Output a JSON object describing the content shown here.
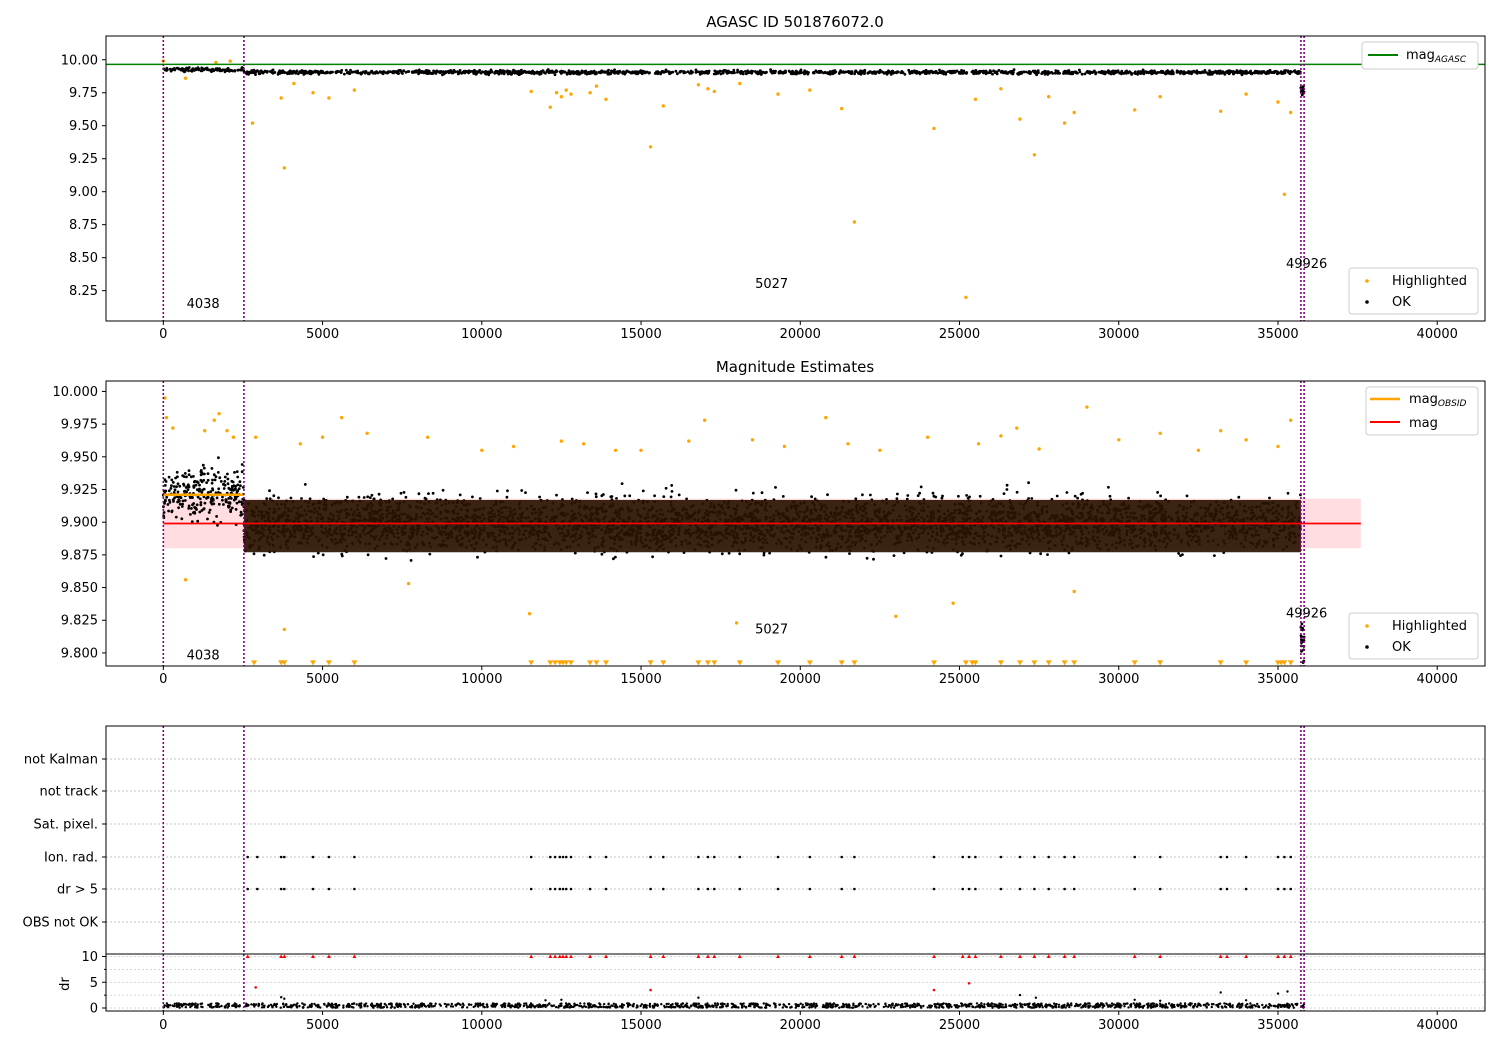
{
  "figure": {
    "panel1_title": "AGASC ID 501876072.0",
    "panel2_title": "Magnitude Estimates"
  },
  "colors": {
    "highlighted": "#ffa500",
    "ok": "#000000",
    "agasc_line": "#008000",
    "mag_line": "#ff0000",
    "obsid_line": "#ffa500",
    "band_fill": "#ffdde0",
    "obsid_boundary": "#800080",
    "dense_fill": "#2a1200",
    "flag_point": "#000000",
    "dr_flag": "#ff0000"
  },
  "chart_data": [
    {
      "type": "scatter",
      "title": "AGASC ID 501876072.0",
      "xlabel": "",
      "ylabel": "",
      "xlim": [
        -1800,
        41500
      ],
      "ylim": [
        8.02,
        10.18
      ],
      "xticks": [
        0,
        5000,
        10000,
        15000,
        20000,
        25000,
        30000,
        35000,
        40000
      ],
      "yticks": [
        8.25,
        8.5,
        8.75,
        9.0,
        9.25,
        9.5,
        9.75,
        10.0
      ],
      "ytick_labels": [
        "8.25",
        "8.50",
        "8.75",
        "9.00",
        "9.25",
        "9.50",
        "9.75",
        "10.00"
      ],
      "grid": false,
      "legend_lines": [
        {
          "label": "mag",
          "sub": "AGASC"
        }
      ],
      "legend_lines_position": "upper right",
      "legend_points": [
        {
          "label": "Highlighted"
        },
        {
          "label": "OK"
        }
      ],
      "legend_points_position": "lower right",
      "hline": {
        "name": "mag_AGASC",
        "y": 9.965
      },
      "obsid_boundaries": [
        0,
        2530,
        35720,
        35820
      ],
      "obsid_labels": [
        {
          "text": "4038",
          "x": 1250,
          "y": 8.12
        },
        {
          "text": "5027",
          "x": 19100,
          "y": 8.27
        },
        {
          "text": "49926",
          "x": 35900,
          "y": 8.42
        }
      ],
      "ok_bands": [
        {
          "x0": 0,
          "x1": 2530,
          "center": 9.925,
          "spread": 0.012
        },
        {
          "x0": 2530,
          "x1": 35720,
          "center": 9.905,
          "spread": 0.012
        },
        {
          "x0": 35720,
          "x1": 35820,
          "center": 9.77,
          "spread": 0.03
        }
      ],
      "highlighted_points": [
        [
          0,
          9.99
        ],
        [
          700,
          9.86
        ],
        [
          1650,
          9.98
        ],
        [
          2100,
          9.99
        ],
        [
          2800,
          9.52
        ],
        [
          3700,
          9.71
        ],
        [
          3800,
          9.18
        ],
        [
          4100,
          9.82
        ],
        [
          4700,
          9.75
        ],
        [
          5200,
          9.71
        ],
        [
          6000,
          9.77
        ],
        [
          11550,
          9.76
        ],
        [
          12150,
          9.64
        ],
        [
          12350,
          9.75
        ],
        [
          12500,
          9.72
        ],
        [
          12650,
          9.77
        ],
        [
          12800,
          9.74
        ],
        [
          13400,
          9.75
        ],
        [
          13600,
          9.8
        ],
        [
          13900,
          9.7
        ],
        [
          15300,
          9.34
        ],
        [
          15700,
          9.65
        ],
        [
          16800,
          9.81
        ],
        [
          17100,
          9.78
        ],
        [
          17300,
          9.76
        ],
        [
          18100,
          9.82
        ],
        [
          19300,
          9.74
        ],
        [
          20300,
          9.77
        ],
        [
          21300,
          9.63
        ],
        [
          21700,
          8.77
        ],
        [
          24200,
          9.48
        ],
        [
          25200,
          8.2
        ],
        [
          25500,
          9.7
        ],
        [
          26300,
          9.78
        ],
        [
          26900,
          9.55
        ],
        [
          27350,
          9.28
        ],
        [
          27800,
          9.72
        ],
        [
          28300,
          9.52
        ],
        [
          28600,
          9.6
        ],
        [
          30500,
          9.62
        ],
        [
          31300,
          9.72
        ],
        [
          33200,
          9.61
        ],
        [
          34000,
          9.74
        ],
        [
          35000,
          9.68
        ],
        [
          35200,
          8.98
        ],
        [
          35400,
          9.6
        ]
      ]
    },
    {
      "type": "scatter",
      "title": "Magnitude Estimates",
      "xlabel": "",
      "ylabel": "",
      "xlim": [
        -1800,
        41500
      ],
      "ylim": [
        9.79,
        10.008
      ],
      "xticks": [
        0,
        5000,
        10000,
        15000,
        20000,
        25000,
        30000,
        35000,
        40000
      ],
      "yticks": [
        9.8,
        9.825,
        9.85,
        9.875,
        9.9,
        9.925,
        9.95,
        9.975,
        10.0
      ],
      "ytick_labels": [
        "9.800",
        "9.825",
        "9.850",
        "9.875",
        "9.900",
        "9.925",
        "9.950",
        "9.975",
        "10.000"
      ],
      "grid": false,
      "legend_lines": [
        {
          "label": "mag",
          "sub": "OBSID"
        },
        {
          "label": "mag",
          "sub": ""
        }
      ],
      "legend_lines_position": "upper right",
      "legend_points": [
        {
          "label": "Highlighted"
        },
        {
          "label": "OK"
        }
      ],
      "legend_points_position": "lower right",
      "mag_line": {
        "name": "mag",
        "y": 9.899
      },
      "mag_band": {
        "y0": 9.88,
        "y1": 9.918,
        "x0": 0,
        "x1": 37600
      },
      "mag_obsid": [
        {
          "x0": 0,
          "x1": 2530,
          "y": 9.921
        }
      ],
      "obsid_boundaries": [
        0,
        2530,
        35720,
        35820
      ],
      "obsid_labels": [
        {
          "text": "4038",
          "x": 1250,
          "y": 9.795
        },
        {
          "text": "5027",
          "x": 19100,
          "y": 9.815
        },
        {
          "text": "49926",
          "x": 35900,
          "y": 9.827
        }
      ],
      "dense_band": {
        "x0": 2530,
        "x1": 35720,
        "y0": 9.877,
        "y1": 9.917
      },
      "ok_bands": [
        {
          "x0": 0,
          "x1": 2530,
          "center": 9.922,
          "spread": 0.016
        },
        {
          "x0": 2530,
          "x1": 35720,
          "center": 9.899,
          "spread": 0.017
        },
        {
          "x0": 35720,
          "x1": 35820,
          "center": 9.81,
          "spread": 0.012
        }
      ],
      "highlighted_points": [
        [
          50,
          9.995
        ],
        [
          100,
          9.98
        ],
        [
          300,
          9.972
        ],
        [
          700,
          9.856
        ],
        [
          1300,
          9.97
        ],
        [
          1600,
          9.978
        ],
        [
          1750,
          9.983
        ],
        [
          2000,
          9.97
        ],
        [
          2200,
          9.965
        ],
        [
          2900,
          9.965
        ],
        [
          3800,
          9.818
        ],
        [
          4300,
          9.96
        ],
        [
          5000,
          9.965
        ],
        [
          5600,
          9.98
        ],
        [
          6400,
          9.968
        ],
        [
          7700,
          9.853
        ],
        [
          8300,
          9.965
        ],
        [
          10000,
          9.955
        ],
        [
          11000,
          9.958
        ],
        [
          11500,
          9.83
        ],
        [
          12500,
          9.962
        ],
        [
          13200,
          9.96
        ],
        [
          14200,
          9.955
        ],
        [
          15000,
          9.955
        ],
        [
          16500,
          9.962
        ],
        [
          17000,
          9.978
        ],
        [
          18000,
          9.823
        ],
        [
          18500,
          9.963
        ],
        [
          19500,
          9.958
        ],
        [
          20800,
          9.98
        ],
        [
          21500,
          9.96
        ],
        [
          22500,
          9.955
        ],
        [
          23000,
          9.828
        ],
        [
          24000,
          9.965
        ],
        [
          24800,
          9.838
        ],
        [
          25600,
          9.96
        ],
        [
          26300,
          9.966
        ],
        [
          26800,
          9.972
        ],
        [
          27500,
          9.956
        ],
        [
          28600,
          9.847
        ],
        [
          29000,
          9.988
        ],
        [
          30000,
          9.963
        ],
        [
          31300,
          9.968
        ],
        [
          32500,
          9.955
        ],
        [
          33200,
          9.97
        ],
        [
          34000,
          9.963
        ],
        [
          35000,
          9.958
        ],
        [
          35400,
          9.978
        ]
      ],
      "below_markers_y": 9.792,
      "below_markers_x": [
        2850,
        3700,
        3800,
        4700,
        5200,
        6000,
        11550,
        12150,
        12300,
        12450,
        12550,
        12650,
        12800,
        13400,
        13600,
        13900,
        15300,
        15700,
        16800,
        17100,
        17300,
        18100,
        19300,
        20300,
        21300,
        21700,
        24200,
        25200,
        25400,
        25500,
        26300,
        26900,
        27350,
        27800,
        28300,
        28600,
        30500,
        31300,
        33200,
        34000,
        35000,
        35100,
        35200,
        35400
      ]
    },
    {
      "type": "scatter",
      "title": "",
      "xlabel": "",
      "ylabel": "",
      "categories": [
        "not Kalman",
        "not track",
        "Sat. pixel.",
        "Ion. rad.",
        "dr > 5",
        "OBS not OK"
      ],
      "xlim": [
        -1800,
        41500
      ],
      "xticks": [
        0,
        5000,
        10000,
        15000,
        20000,
        25000,
        30000,
        35000,
        40000
      ],
      "obsid_boundaries": [
        0,
        2530,
        35720,
        35820
      ],
      "flagged_rows": {
        "Ion. rad.": [
          2650,
          2950,
          3700,
          3800,
          4700,
          5200,
          6000,
          11550,
          12150,
          12300,
          12450,
          12550,
          12650,
          12800,
          13400,
          13900,
          15300,
          15700,
          16800,
          17100,
          17300,
          18100,
          19300,
          20300,
          21300,
          21700,
          24200,
          25100,
          25300,
          25500,
          26300,
          26900,
          27350,
          27800,
          28300,
          28600,
          30500,
          31300,
          33200,
          33400,
          34000,
          35000,
          35200,
          35400
        ],
        "dr > 5": [
          2650,
          2950,
          3700,
          3800,
          4700,
          5200,
          6000,
          11550,
          12150,
          12300,
          12450,
          12550,
          12650,
          12800,
          13400,
          13900,
          15300,
          15700,
          16800,
          17100,
          17300,
          18100,
          19300,
          20300,
          21300,
          21700,
          24200,
          25100,
          25300,
          25500,
          26300,
          26900,
          27350,
          27800,
          28300,
          28600,
          30500,
          31300,
          33200,
          33400,
          34000,
          35000,
          35200,
          35400
        ]
      }
    },
    {
      "type": "scatter",
      "title": "",
      "xlabel": "",
      "ylabel": "dr",
      "xlim": [
        -1800,
        41500
      ],
      "ylim": [
        -0.5,
        10.5
      ],
      "yticks": [
        0,
        5,
        10
      ],
      "ytick_labels": [
        "0",
        "5",
        "10"
      ],
      "xticks": [
        0,
        5000,
        10000,
        15000,
        20000,
        25000,
        30000,
        35000,
        40000
      ],
      "xtick_labels": [
        "0",
        "5000",
        "10000",
        "15000",
        "20000",
        "25000",
        "30000",
        "35000",
        "40000"
      ],
      "obsid_boundaries": [
        0,
        2530,
        35720,
        35820
      ],
      "clipped_y": 10,
      "clipped_x": [
        2650,
        3700,
        3800,
        4700,
        5200,
        6000,
        11550,
        12150,
        12300,
        12450,
        12550,
        12650,
        12800,
        13400,
        13900,
        15300,
        15700,
        16800,
        17100,
        17300,
        18100,
        19300,
        20300,
        21300,
        21700,
        24200,
        25100,
        25300,
        25500,
        26300,
        26900,
        27350,
        27800,
        28300,
        28600,
        30500,
        31300,
        33200,
        33400,
        34000,
        35000,
        35200,
        35400
      ],
      "red_points": [
        [
          2900,
          4.0
        ],
        [
          15300,
          3.5
        ],
        [
          24200,
          3.5
        ],
        [
          25300,
          4.8
        ]
      ],
      "scatter_points": [
        [
          3700,
          2.1
        ],
        [
          3800,
          1.8
        ],
        [
          12000,
          1.5
        ],
        [
          12500,
          1.6
        ],
        [
          16800,
          2.0
        ],
        [
          26900,
          2.5
        ],
        [
          27400,
          2.0
        ],
        [
          30500,
          1.6
        ],
        [
          31300,
          1.4
        ],
        [
          33200,
          3.0
        ],
        [
          34000,
          1.5
        ],
        [
          35000,
          2.8
        ],
        [
          35300,
          3.2
        ]
      ],
      "baseline_band": {
        "x0": 0,
        "x1": 35820,
        "y0": 0.05,
        "y1": 0.9
      }
    }
  ]
}
